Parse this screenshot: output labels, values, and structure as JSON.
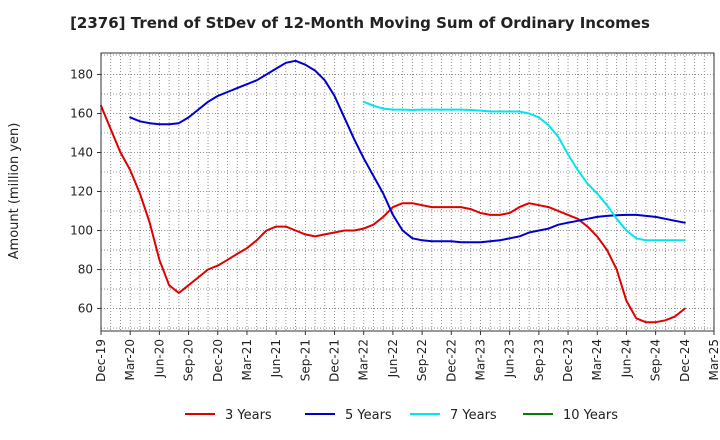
{
  "chart_data": {
    "type": "line",
    "title": "[2376]  Trend of StDev of 12-Month Moving Sum of Ordinary Incomes",
    "xlabel": "",
    "ylabel": "Amount (million yen)",
    "ylim": [
      48.5,
      191
    ],
    "yticks": [
      60,
      80,
      100,
      120,
      140,
      160,
      180
    ],
    "xlim": [
      "2019-12",
      "2025-03"
    ],
    "xtick_labels": [
      "Dec-19",
      "Mar-20",
      "Jun-20",
      "Sep-20",
      "Dec-20",
      "Mar-21",
      "Jun-21",
      "Sep-21",
      "Dec-21",
      "Mar-22",
      "Jun-22",
      "Sep-22",
      "Dec-22",
      "Mar-23",
      "Jun-23",
      "Sep-23",
      "Dec-23",
      "Mar-24",
      "Jun-24",
      "Sep-24",
      "Dec-24",
      "Mar-25"
    ],
    "grid": true,
    "legend_position": "bottom",
    "series": [
      {
        "name": "3 Years",
        "color": "#e00000",
        "x": [
          "2019-12",
          "2020-01",
          "2020-02",
          "2020-03",
          "2020-04",
          "2020-05",
          "2020-06",
          "2020-07",
          "2020-08",
          "2020-09",
          "2020-10",
          "2020-11",
          "2020-12",
          "2021-01",
          "2021-02",
          "2021-03",
          "2021-04",
          "2021-05",
          "2021-06",
          "2021-07",
          "2021-08",
          "2021-09",
          "2021-10",
          "2021-11",
          "2021-12",
          "2022-01",
          "2022-02",
          "2022-03",
          "2022-04",
          "2022-05",
          "2022-06",
          "2022-07",
          "2022-08",
          "2022-09",
          "2022-10",
          "2022-11",
          "2022-12",
          "2023-01",
          "2023-02",
          "2023-03",
          "2023-04",
          "2023-05",
          "2023-06",
          "2023-07",
          "2023-08",
          "2023-09",
          "2023-10",
          "2023-11",
          "2023-12",
          "2024-01",
          "2024-02",
          "2024-03",
          "2024-04",
          "2024-05",
          "2024-06",
          "2024-07",
          "2024-08",
          "2024-09",
          "2024-10",
          "2024-11",
          "2024-12"
        ],
        "values": [
          164,
          152,
          140,
          131,
          119,
          104,
          85,
          72,
          68,
          72,
          76,
          80,
          82,
          85,
          88,
          91,
          95,
          100,
          102,
          102,
          100,
          98,
          97,
          98,
          99,
          100,
          100,
          101,
          103,
          107,
          112,
          114,
          114,
          113,
          112,
          112,
          112,
          112,
          111,
          109,
          108,
          108,
          109,
          112,
          114,
          113,
          112,
          110,
          108,
          106,
          102,
          97,
          90,
          80,
          64,
          55,
          53,
          53,
          54,
          56,
          60
        ],
        "values_are_estimates": true
      },
      {
        "name": "5 Years",
        "color": "#0000cc",
        "x": [
          "2020-03",
          "2020-04",
          "2020-05",
          "2020-06",
          "2020-07",
          "2020-08",
          "2020-09",
          "2020-10",
          "2020-11",
          "2020-12",
          "2021-01",
          "2021-02",
          "2021-03",
          "2021-04",
          "2021-05",
          "2021-06",
          "2021-07",
          "2021-08",
          "2021-09",
          "2021-10",
          "2021-11",
          "2021-12",
          "2022-01",
          "2022-02",
          "2022-03",
          "2022-04",
          "2022-05",
          "2022-06",
          "2022-07",
          "2022-08",
          "2022-09",
          "2022-10",
          "2022-11",
          "2022-12",
          "2023-01",
          "2023-02",
          "2023-03",
          "2023-04",
          "2023-05",
          "2023-06",
          "2023-07",
          "2023-08",
          "2023-09",
          "2023-10",
          "2023-11",
          "2023-12",
          "2024-01",
          "2024-02",
          "2024-03",
          "2024-04",
          "2024-05",
          "2024-06",
          "2024-07",
          "2024-08",
          "2024-09",
          "2024-10",
          "2024-11",
          "2024-12"
        ],
        "values": [
          158,
          156,
          155,
          154.5,
          154.5,
          155,
          158,
          162,
          166,
          169,
          171,
          173,
          175,
          177,
          180,
          183,
          186,
          187,
          185,
          182,
          177,
          169,
          158,
          147,
          137,
          128,
          119,
          108,
          100,
          96,
          95,
          94.5,
          94.5,
          94.5,
          94,
          94,
          94,
          94.5,
          95,
          96,
          97,
          99,
          100,
          101,
          103,
          104,
          105,
          106,
          107,
          107.5,
          107.8,
          108,
          108,
          107.5,
          107,
          106,
          105,
          104
        ],
        "values_are_estimates": true
      },
      {
        "name": "7 Years",
        "color": "#00e5ee",
        "x": [
          "2022-03",
          "2022-04",
          "2022-05",
          "2022-06",
          "2022-07",
          "2022-08",
          "2022-09",
          "2022-10",
          "2022-11",
          "2022-12",
          "2023-01",
          "2023-02",
          "2023-03",
          "2023-04",
          "2023-05",
          "2023-06",
          "2023-07",
          "2023-08",
          "2023-09",
          "2023-10",
          "2023-11",
          "2023-12",
          "2024-01",
          "2024-02",
          "2024-03",
          "2024-04",
          "2024-05",
          "2024-06",
          "2024-07",
          "2024-08",
          "2024-09",
          "2024-10",
          "2024-11",
          "2024-12"
        ],
        "values": [
          166,
          164,
          162.5,
          162,
          162,
          161.8,
          162,
          162,
          162,
          162,
          162,
          161.8,
          161.5,
          161,
          161,
          161,
          161,
          160,
          158,
          154,
          148,
          139,
          131,
          124,
          119,
          113,
          106,
          100,
          96,
          95,
          95,
          95,
          95,
          95
        ],
        "values_are_estimates": true
      },
      {
        "name": "10 Years",
        "color": "#008000",
        "x": [],
        "values": []
      }
    ]
  }
}
